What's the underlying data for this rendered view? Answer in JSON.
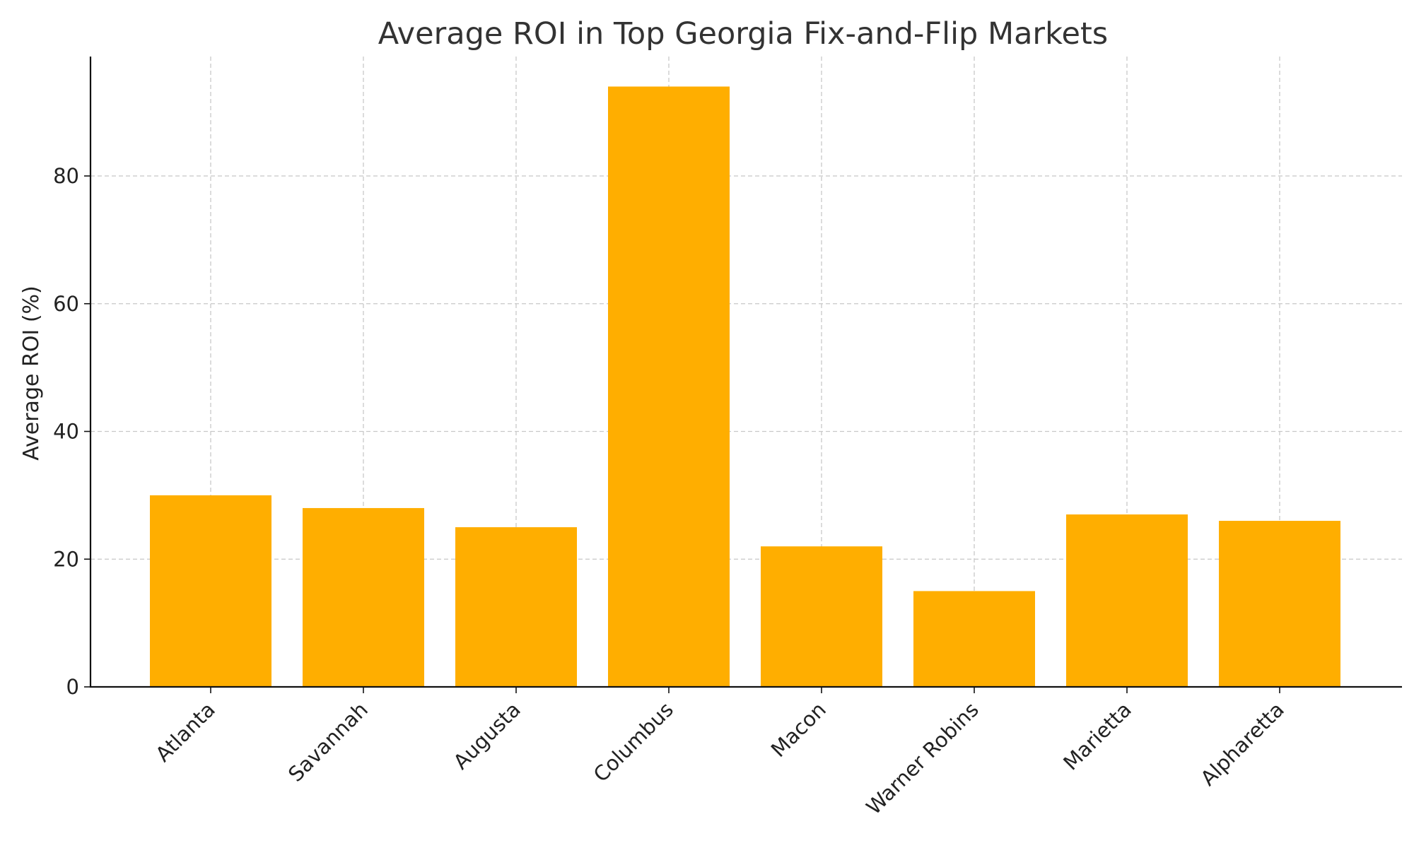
{
  "chart_data": {
    "type": "bar",
    "title": "Average ROI in Top Georgia Fix-and-Flip Markets",
    "xlabel": "",
    "ylabel": "Average ROI (%)",
    "categories": [
      "Atlanta",
      "Savannah",
      "Augusta",
      "Columbus",
      "Macon",
      "Warner Robins",
      "Marietta",
      "Alpharetta"
    ],
    "values": [
      30,
      28,
      25,
      94,
      22,
      15,
      27,
      26
    ],
    "ylim": [
      0,
      98.7
    ],
    "yticks": [
      0,
      20,
      40,
      60,
      80
    ],
    "grid": true,
    "bar_color": "#FFAE00"
  }
}
